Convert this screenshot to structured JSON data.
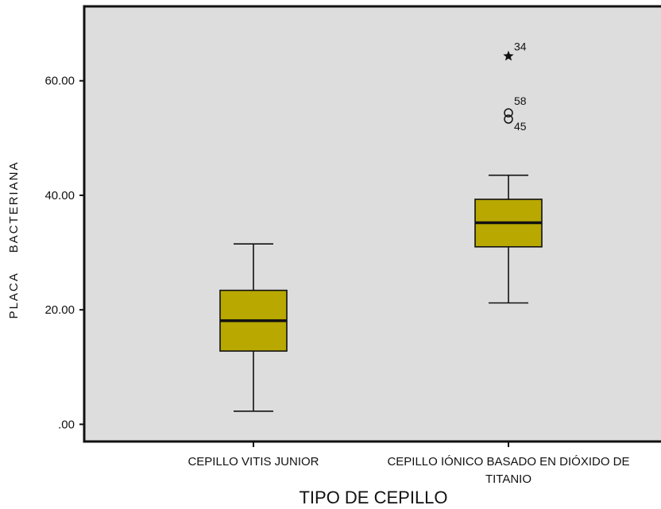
{
  "chart_data": {
    "type": "boxplot",
    "xlabel": "TIPO DE CEPILLO",
    "ylabel": "PLACA    BACTERIANA",
    "ylim": [
      -3,
      73
    ],
    "yticks": [
      {
        "value": 0,
        "label": ".00"
      },
      {
        "value": 20,
        "label": "20.00"
      },
      {
        "value": 40,
        "label": "40.00"
      },
      {
        "value": 60,
        "label": "60.00"
      }
    ],
    "grid": false,
    "colors": {
      "plot_background": "#dddddd",
      "box_fill": "#b8a800",
      "line": "#111111"
    },
    "categories": [
      {
        "label_lines": [
          "CEPILLO VITIS JUNIOR"
        ],
        "whisker_low": 2.3,
        "q1": 12.8,
        "median": 18.1,
        "q3": 23.4,
        "whisker_high": 31.5,
        "outliers": []
      },
      {
        "label_lines": [
          "CEPILLO IÓNICO BASADO EN DIÓXIDO DE",
          "TITANIO"
        ],
        "whisker_low": 21.2,
        "q1": 31.0,
        "median": 35.2,
        "q3": 39.3,
        "whisker_high": 43.5,
        "outliers": [
          {
            "value": 64.3,
            "label": "34",
            "marker": "star"
          },
          {
            "value": 54.4,
            "label": "58",
            "marker": "circle"
          },
          {
            "value": 53.3,
            "label": "45",
            "marker": "circle"
          }
        ]
      }
    ]
  }
}
